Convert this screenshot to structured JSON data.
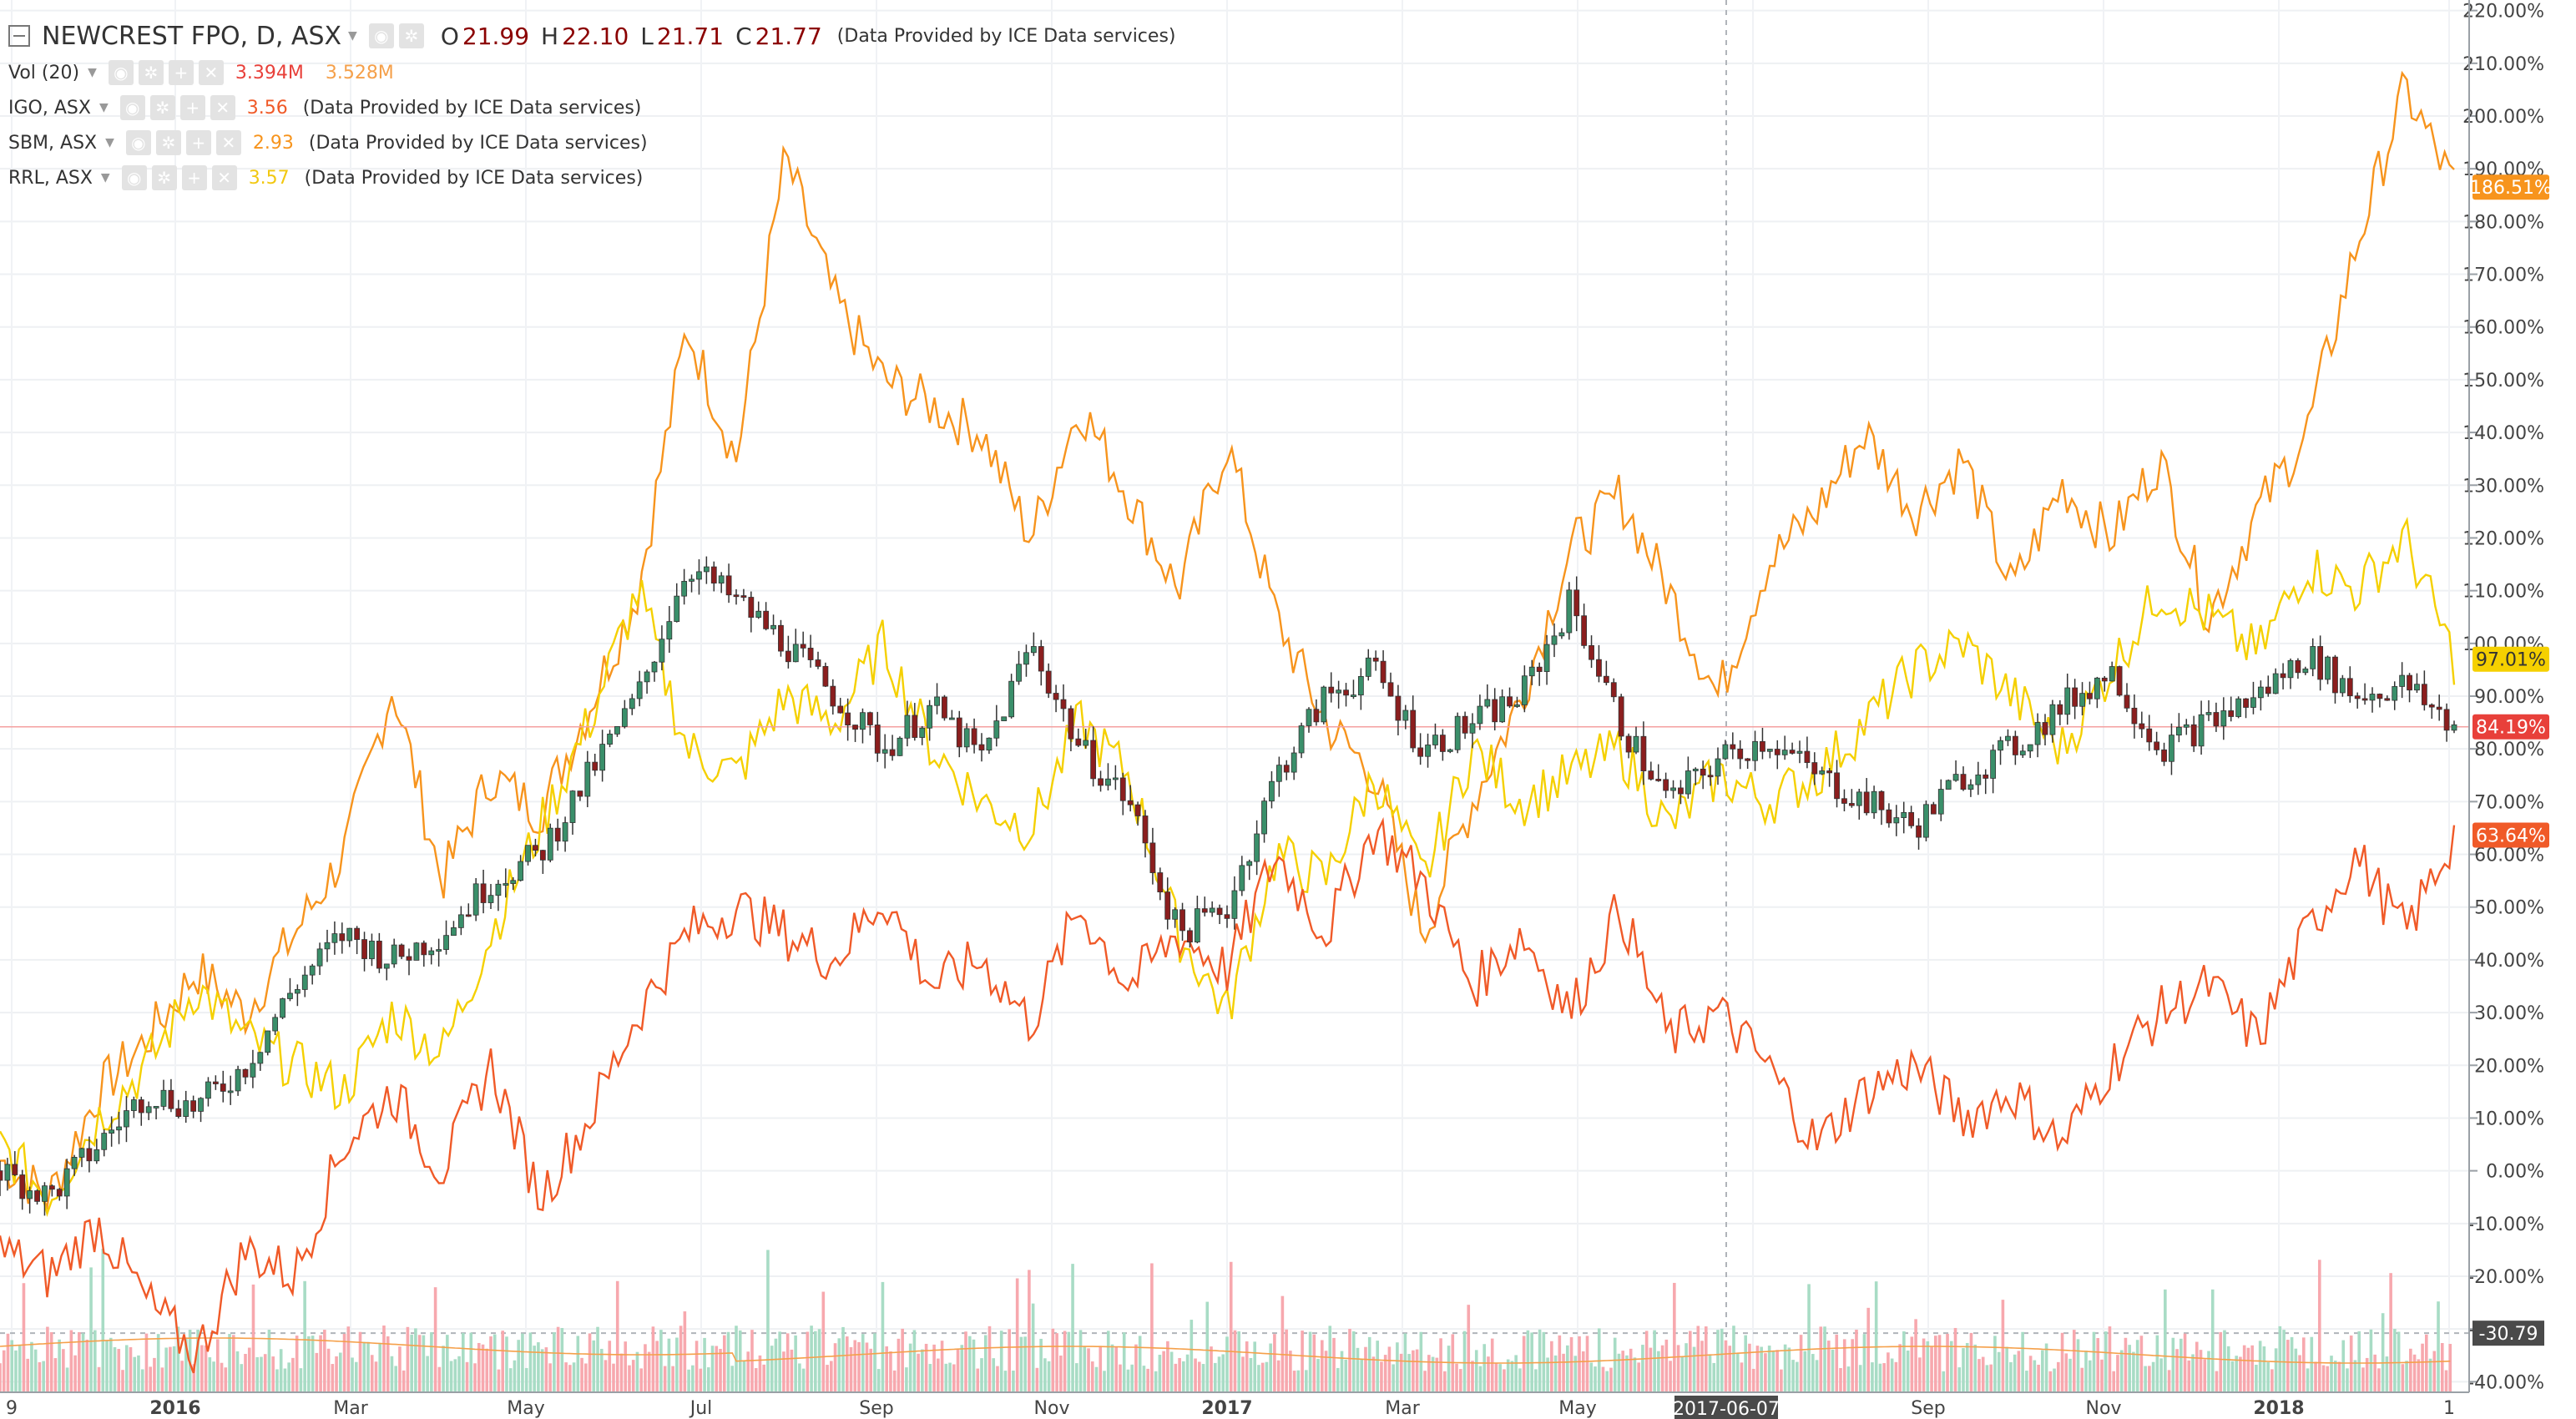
{
  "header": {
    "symbol": "NEWCREST FPO, D, ASX",
    "ohlc": {
      "o_label": "O",
      "o": "21.99",
      "h_label": "H",
      "h": "22.10",
      "l_label": "L",
      "l": "21.71",
      "c_label": "C",
      "c": "21.77"
    },
    "provider_note": "(Data Provided by ICE Data services)"
  },
  "legend": [
    {
      "name": "Vol (20)",
      "values": [
        "3.394M",
        "3.528M"
      ],
      "colors": [
        "#e8403a",
        "#f5a04a"
      ],
      "note": ""
    },
    {
      "name": "IGO, ASX",
      "values": [
        "3.56"
      ],
      "colors": [
        "#f05a28"
      ],
      "note": "(Data Provided by ICE Data services)"
    },
    {
      "name": "SBM, ASX",
      "values": [
        "2.93"
      ],
      "colors": [
        "#f7941d"
      ],
      "note": "(Data Provided by ICE Data services)"
    },
    {
      "name": "RRL, ASX",
      "values": [
        "3.57"
      ],
      "colors": [
        "#f2c811"
      ],
      "note": "(Data Provided by ICE Data services)"
    }
  ],
  "colors": {
    "up": "#3a8f6a",
    "down": "#8b1e1e",
    "igo": "#f05a28",
    "sbm": "#f7941d",
    "rrl": "#f5d000",
    "vol_up": "#a8dcc5",
    "vol_down": "#f7a8ae",
    "ma": "#f5a04a"
  },
  "crosshair": {
    "date_label": "2017-06-07",
    "value_label": "-30.79"
  },
  "chart_data": {
    "type": "line",
    "y_unit": "%",
    "y_ticks": [
      "220.00%",
      "210.00%",
      "200.00%",
      "190.00%",
      "180.00%",
      "170.00%",
      "160.00%",
      "150.00%",
      "140.00%",
      "130.00%",
      "120.00%",
      "110.00%",
      "100.00%",
      "90.00%",
      "80.00%",
      "70.00%",
      "60.00%",
      "50.00%",
      "40.00%",
      "30.00%",
      "20.00%",
      "10.00%",
      "0.00%",
      "-10.00%",
      "-20.00%",
      "-30.00%",
      "-40.00%"
    ],
    "ylim": [
      -42,
      222
    ],
    "x_ticks": [
      "9",
      "2016",
      "Mar",
      "May",
      "Jul",
      "Sep",
      "Nov",
      "2017",
      "Mar",
      "May",
      "Jul",
      "Sep",
      "Nov",
      "2018",
      "1"
    ],
    "grid": true,
    "last_values": {
      "sbm": "186.51%",
      "rrl": "97.01%",
      "ncm": "84.19%",
      "igo": "63.64%"
    },
    "series": [
      {
        "name": "SBM, ASX",
        "x": [
          0,
          0.02,
          0.04,
          0.06,
          0.08,
          0.1,
          0.12,
          0.14,
          0.16,
          0.18,
          0.2,
          0.22,
          0.24,
          0.26,
          0.28,
          0.3,
          0.32,
          0.34,
          0.36,
          0.38,
          0.4,
          0.42,
          0.44,
          0.46,
          0.48,
          0.5,
          0.52,
          0.54,
          0.56,
          0.58,
          0.6,
          0.62,
          0.64,
          0.66,
          0.68,
          0.7,
          0.72,
          0.74,
          0.76,
          0.78,
          0.8,
          0.82,
          0.84,
          0.86,
          0.88,
          0.9,
          0.92,
          0.94,
          0.96,
          0.98,
          1
        ],
        "values": [
          2,
          -5,
          15,
          25,
          38,
          30,
          45,
          60,
          92,
          55,
          75,
          68,
          88,
          110,
          160,
          135,
          192,
          165,
          150,
          145,
          140,
          120,
          145,
          128,
          110,
          138,
          105,
          85,
          75,
          45,
          70,
          90,
          118,
          128,
          110,
          90,
          115,
          125,
          140,
          125,
          135,
          110,
          130,
          120,
          135,
          105,
          125,
          140,
          175,
          205,
          186.5
        ]
      },
      {
        "name": "RRL, ASX",
        "x": [
          0,
          0.02,
          0.04,
          0.06,
          0.08,
          0.1,
          0.12,
          0.14,
          0.16,
          0.18,
          0.2,
          0.22,
          0.24,
          0.26,
          0.28,
          0.3,
          0.32,
          0.34,
          0.36,
          0.38,
          0.4,
          0.42,
          0.44,
          0.46,
          0.48,
          0.5,
          0.52,
          0.54,
          0.56,
          0.58,
          0.6,
          0.62,
          0.64,
          0.66,
          0.68,
          0.7,
          0.72,
          0.74,
          0.76,
          0.78,
          0.8,
          0.82,
          0.84,
          0.86,
          0.88,
          0.9,
          0.92,
          0.94,
          0.96,
          0.98,
          1
        ],
        "values": [
          5,
          -5,
          10,
          20,
          35,
          25,
          20,
          15,
          30,
          22,
          45,
          65,
          85,
          110,
          80,
          75,
          90,
          85,
          100,
          80,
          70,
          65,
          85,
          75,
          45,
          30,
          60,
          55,
          75,
          55,
          80,
          70,
          75,
          80,
          65,
          75,
          70,
          75,
          85,
          95,
          100,
          90,
          80,
          95,
          110,
          105,
          98,
          115,
          110,
          120,
          97
        ]
      },
      {
        "name": "IGO, ASX",
        "x": [
          0,
          0.02,
          0.04,
          0.06,
          0.08,
          0.1,
          0.12,
          0.14,
          0.16,
          0.18,
          0.2,
          0.22,
          0.24,
          0.26,
          0.28,
          0.3,
          0.32,
          0.34,
          0.36,
          0.38,
          0.4,
          0.42,
          0.44,
          0.46,
          0.48,
          0.5,
          0.52,
          0.54,
          0.56,
          0.58,
          0.6,
          0.62,
          0.64,
          0.66,
          0.68,
          0.7,
          0.72,
          0.74,
          0.76,
          0.78,
          0.8,
          0.82,
          0.84,
          0.86,
          0.88,
          0.9,
          0.92,
          0.94,
          0.96,
          0.98,
          1
        ],
        "values": [
          -15,
          -20,
          -10,
          -25,
          -35,
          -15,
          -20,
          5,
          15,
          0,
          20,
          -5,
          10,
          30,
          45,
          50,
          45,
          40,
          52,
          35,
          40,
          28,
          50,
          35,
          45,
          38,
          60,
          45,
          65,
          55,
          35,
          45,
          30,
          50,
          25,
          30,
          20,
          5,
          15,
          20,
          10,
          15,
          5,
          20,
          30,
          35,
          25,
          45,
          60,
          45,
          63.6
        ]
      },
      {
        "name": "NEWCREST FPO",
        "x": [
          0,
          0.02,
          0.04,
          0.06,
          0.08,
          0.1,
          0.12,
          0.14,
          0.16,
          0.18,
          0.2,
          0.22,
          0.24,
          0.26,
          0.28,
          0.3,
          0.32,
          0.34,
          0.36,
          0.38,
          0.4,
          0.42,
          0.44,
          0.46,
          0.48,
          0.5,
          0.52,
          0.54,
          0.56,
          0.58,
          0.6,
          0.62,
          0.64,
          0.66,
          0.68,
          0.7,
          0.72,
          0.74,
          0.76,
          0.78,
          0.8,
          0.82,
          0.84,
          0.86,
          0.88,
          0.9,
          0.92,
          0.94,
          0.96,
          0.98,
          1
        ],
        "values": [
          0,
          -5,
          5,
          15,
          12,
          20,
          35,
          45,
          40,
          45,
          55,
          60,
          75,
          90,
          115,
          108,
          100,
          90,
          80,
          88,
          78,
          100,
          80,
          70,
          45,
          50,
          75,
          90,
          95,
          80,
          85,
          90,
          108,
          85,
          70,
          78,
          82,
          75,
          70,
          65,
          75,
          80,
          88,
          95,
          80,
          85,
          90,
          98,
          90,
          92,
          84.2
        ]
      }
    ]
  }
}
